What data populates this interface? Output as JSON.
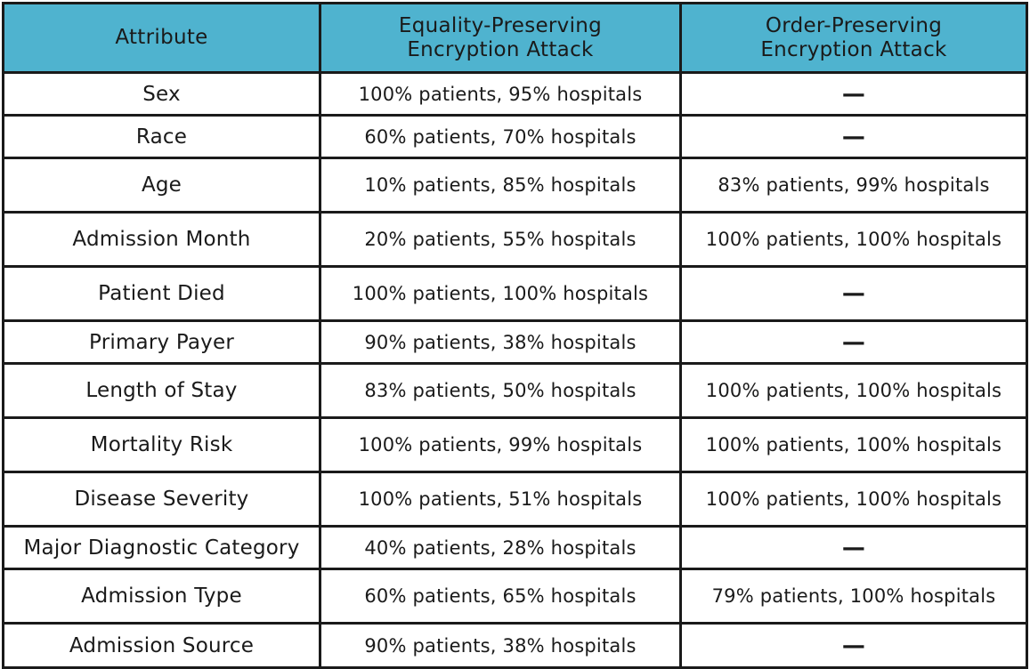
{
  "colors": {
    "header_bg": "#4fb3cf",
    "border": "#1a1a1a",
    "text": "#1a1a1a"
  },
  "headers": {
    "attribute": "Attribute",
    "equality": [
      "Equality-Preserving",
      "Encryption Attack"
    ],
    "order": [
      "Order-Preserving",
      "Encryption Attack"
    ]
  },
  "rows": [
    {
      "attribute": "Sex",
      "equality": "100% patients, 95% hospitals",
      "order": "—"
    },
    {
      "attribute": "Race",
      "equality": "60% patients, 70% hospitals",
      "order": "—"
    },
    {
      "attribute": "Age",
      "equality": "10% patients, 85% hospitals",
      "order": "83% patients, 99% hospitals"
    },
    {
      "attribute": "Admission Month",
      "equality": "20% patients, 55% hospitals",
      "order": "100% patients, 100% hospitals"
    },
    {
      "attribute": "Patient Died",
      "equality": "100% patients, 100% hospitals",
      "order": "—"
    },
    {
      "attribute": "Primary Payer",
      "equality": "90% patients, 38% hospitals",
      "order": "—"
    },
    {
      "attribute": "Length of Stay",
      "equality": "83% patients, 50% hospitals",
      "order": "100% patients, 100% hospitals"
    },
    {
      "attribute": "Mortality Risk",
      "equality": "100% patients, 99% hospitals",
      "order": "100% patients, 100% hospitals"
    },
    {
      "attribute": "Disease Severity",
      "equality": "100% patients, 51% hospitals",
      "order": "100% patients, 100% hospitals"
    },
    {
      "attribute": "Major Diagnostic Category",
      "equality": "40% patients, 28% hospitals",
      "order": "—"
    },
    {
      "attribute": "Admission Type",
      "equality": "60% patients, 65% hospitals",
      "order": "79% patients, 100% hospitals"
    },
    {
      "attribute": "Admission Source",
      "equality": "90% patients, 38% hospitals",
      "order": "—"
    }
  ]
}
